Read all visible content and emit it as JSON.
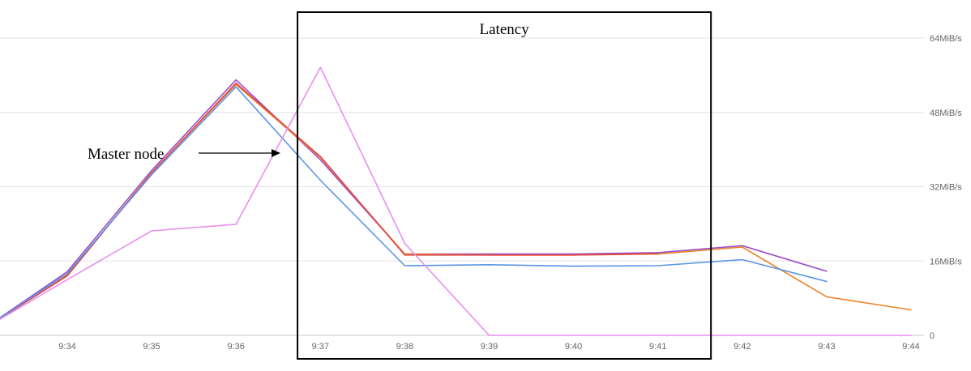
{
  "chart_data": {
    "type": "line",
    "title": "",
    "xlabel": "",
    "ylabel": "",
    "x_ticks": [
      "9:34",
      "9:35",
      "9:36",
      "9:37",
      "9:38",
      "9:39",
      "9:40",
      "9:41",
      "9:42",
      "9:43",
      "9:44"
    ],
    "y_ticks": [
      "0",
      "16MiB/s",
      "32MiB/s",
      "48MiB/s",
      "64MiB/s"
    ],
    "y_axis_position": "right",
    "ylim": [
      0,
      64
    ],
    "grid": true,
    "series": [
      {
        "color": "#9c4fc7",
        "points": [
          [
            "9:33",
            1.3
          ],
          [
            "9:34",
            13.7
          ],
          [
            "9:35",
            35.5
          ],
          [
            "9:36",
            55.0
          ],
          [
            "9:37",
            37.8
          ],
          [
            "9:38",
            17.5
          ],
          [
            "9:39",
            17.5
          ],
          [
            "9:40",
            17.5
          ],
          [
            "9:41",
            17.8
          ],
          [
            "9:42",
            19.3
          ],
          [
            "9:43",
            13.8
          ]
        ]
      },
      {
        "color": "#e8862c",
        "points": [
          [
            "9:33",
            1.3
          ],
          [
            "9:34",
            13.0
          ],
          [
            "9:35",
            35.0
          ],
          [
            "9:36",
            54.0
          ],
          [
            "9:37",
            38.3
          ],
          [
            "9:38",
            17.5
          ],
          [
            "9:39",
            17.3
          ],
          [
            "9:40",
            17.3
          ],
          [
            "9:41",
            17.5
          ],
          [
            "9:42",
            19.0
          ],
          [
            "9:43",
            8.3
          ],
          [
            "9:44",
            5.5
          ]
        ]
      },
      {
        "color": "#e04848",
        "points": [
          [
            "9:33",
            1.3
          ],
          [
            "9:34",
            12.8
          ],
          [
            "9:35",
            35.0
          ],
          [
            "9:36",
            54.3
          ],
          [
            "9:37",
            38.5
          ],
          [
            "9:38",
            17.3
          ],
          [
            "9:39",
            17.3
          ],
          [
            "9:40",
            17.3
          ],
          [
            "9:41",
            17.6
          ]
        ]
      },
      {
        "color": "#5b95e6",
        "points": [
          [
            "9:33",
            1.3
          ],
          [
            "9:34",
            13.3
          ],
          [
            "9:35",
            34.6
          ],
          [
            "9:36",
            53.5
          ],
          [
            "9:37",
            33.4
          ],
          [
            "9:38",
            15.0
          ],
          [
            "9:39",
            15.2
          ],
          [
            "9:40",
            14.9
          ],
          [
            "9:41",
            15.0
          ],
          [
            "9:42",
            16.3
          ],
          [
            "9:43",
            11.6
          ]
        ]
      },
      {
        "color": "#e78ef0",
        "points": [
          [
            "9:33",
            1.3
          ],
          [
            "9:34",
            12.0
          ],
          [
            "9:35",
            22.5
          ],
          [
            "9:36",
            23.9
          ],
          [
            "9:37",
            57.7
          ],
          [
            "9:38",
            19.8
          ],
          [
            "9:39",
            0
          ],
          [
            "9:40",
            0
          ],
          [
            "9:41",
            0
          ],
          [
            "9:42",
            0
          ],
          [
            "9:43",
            0
          ],
          [
            "9:44",
            0
          ]
        ]
      }
    ],
    "annotations": {
      "box_label": "Latency",
      "box_x_range": [
        "9:37",
        "9:41"
      ],
      "arrow_label": "Master node"
    }
  }
}
